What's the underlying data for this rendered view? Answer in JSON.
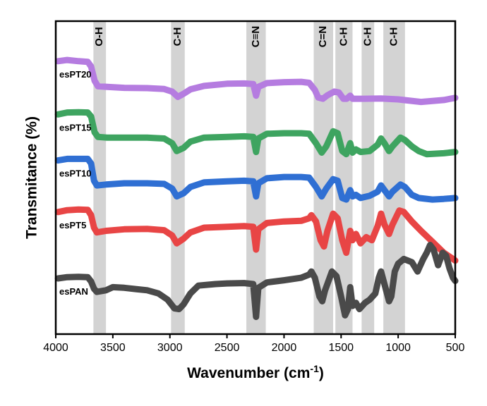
{
  "chart_data": {
    "type": "line",
    "title": "",
    "xlabel": "Wavenumber (cm",
    "xlabel_sup": "-1",
    "xlabel_close": ")",
    "ylabel": "Transmitance (%)",
    "x_reversed": true,
    "xlim": [
      4000,
      500
    ],
    "ylim": [
      0,
      1
    ],
    "x_ticks": [
      4000,
      3500,
      3000,
      2500,
      2000,
      1500,
      1000,
      500
    ],
    "x_tick_labels": [
      "4000",
      "3500",
      "3000",
      "2500",
      "2000",
      "1500",
      "1000",
      "500"
    ],
    "grid": false,
    "legend": "inline-left",
    "bands": [
      {
        "label": "O-H",
        "from": 3670,
        "to": 3560
      },
      {
        "label": "C-H",
        "from": 2990,
        "to": 2870
      },
      {
        "label": "C≡N",
        "from": 2330,
        "to": 2160
      },
      {
        "label": "C=N",
        "from": 1740,
        "to": 1570
      },
      {
        "label": "C-H",
        "from": 1550,
        "to": 1400
      },
      {
        "label": "C-H",
        "from": 1320,
        "to": 1210
      },
      {
        "label": "C-H",
        "from": 1130,
        "to": 940
      }
    ],
    "series": [
      {
        "name": "esPT20",
        "color": "#b57ce0",
        "points": [
          [
            3980,
            0.872
          ],
          [
            3900,
            0.876
          ],
          [
            3800,
            0.872
          ],
          [
            3720,
            0.87
          ],
          [
            3690,
            0.855
          ],
          [
            3660,
            0.81
          ],
          [
            3630,
            0.792
          ],
          [
            3550,
            0.79
          ],
          [
            3400,
            0.787
          ],
          [
            3200,
            0.786
          ],
          [
            3050,
            0.783
          ],
          [
            2980,
            0.775
          ],
          [
            2930,
            0.758
          ],
          [
            2880,
            0.768
          ],
          [
            2820,
            0.782
          ],
          [
            2700,
            0.793
          ],
          [
            2500,
            0.8
          ],
          [
            2350,
            0.801
          ],
          [
            2270,
            0.799
          ],
          [
            2245,
            0.762
          ],
          [
            2225,
            0.79
          ],
          [
            2150,
            0.802
          ],
          [
            2000,
            0.805
          ],
          [
            1850,
            0.806
          ],
          [
            1780,
            0.803
          ],
          [
            1730,
            0.78
          ],
          [
            1700,
            0.756
          ],
          [
            1660,
            0.752
          ],
          [
            1620,
            0.763
          ],
          [
            1560,
            0.775
          ],
          [
            1520,
            0.772
          ],
          [
            1480,
            0.752
          ],
          [
            1450,
            0.752
          ],
          [
            1420,
            0.762
          ],
          [
            1400,
            0.752
          ],
          [
            1300,
            0.752
          ],
          [
            1150,
            0.753
          ],
          [
            1000,
            0.75
          ],
          [
            800,
            0.742
          ],
          [
            600,
            0.748
          ],
          [
            500,
            0.755
          ]
        ]
      },
      {
        "name": "esPT15",
        "color": "#3ea460",
        "points": [
          [
            3980,
            0.702
          ],
          [
            3900,
            0.708
          ],
          [
            3800,
            0.709
          ],
          [
            3720,
            0.708
          ],
          [
            3690,
            0.695
          ],
          [
            3660,
            0.645
          ],
          [
            3630,
            0.63
          ],
          [
            3550,
            0.628
          ],
          [
            3400,
            0.628
          ],
          [
            3200,
            0.628
          ],
          [
            3050,
            0.625
          ],
          [
            2980,
            0.61
          ],
          [
            2940,
            0.585
          ],
          [
            2880,
            0.595
          ],
          [
            2820,
            0.615
          ],
          [
            2700,
            0.628
          ],
          [
            2500,
            0.63
          ],
          [
            2350,
            0.632
          ],
          [
            2270,
            0.63
          ],
          [
            2245,
            0.582
          ],
          [
            2225,
            0.625
          ],
          [
            2150,
            0.64
          ],
          [
            2000,
            0.642
          ],
          [
            1850,
            0.642
          ],
          [
            1780,
            0.64
          ],
          [
            1720,
            0.61
          ],
          [
            1670,
            0.58
          ],
          [
            1630,
            0.6
          ],
          [
            1570,
            0.648
          ],
          [
            1530,
            0.642
          ],
          [
            1490,
            0.585
          ],
          [
            1455,
            0.575
          ],
          [
            1420,
            0.61
          ],
          [
            1400,
            0.58
          ],
          [
            1370,
            0.59
          ],
          [
            1330,
            0.582
          ],
          [
            1250,
            0.585
          ],
          [
            1180,
            0.605
          ],
          [
            1150,
            0.625
          ],
          [
            1120,
            0.61
          ],
          [
            1080,
            0.585
          ],
          [
            1050,
            0.6
          ],
          [
            980,
            0.628
          ],
          [
            940,
            0.62
          ],
          [
            880,
            0.6
          ],
          [
            820,
            0.585
          ],
          [
            750,
            0.575
          ],
          [
            600,
            0.578
          ],
          [
            500,
            0.582
          ]
        ]
      },
      {
        "name": "esPT10",
        "color": "#2f6fd3",
        "points": [
          [
            3980,
            0.555
          ],
          [
            3900,
            0.56
          ],
          [
            3800,
            0.56
          ],
          [
            3720,
            0.56
          ],
          [
            3690,
            0.545
          ],
          [
            3665,
            0.49
          ],
          [
            3640,
            0.475
          ],
          [
            3560,
            0.478
          ],
          [
            3400,
            0.482
          ],
          [
            3200,
            0.482
          ],
          [
            3050,
            0.48
          ],
          [
            2980,
            0.465
          ],
          [
            2940,
            0.44
          ],
          [
            2880,
            0.45
          ],
          [
            2820,
            0.47
          ],
          [
            2700,
            0.485
          ],
          [
            2500,
            0.488
          ],
          [
            2350,
            0.49
          ],
          [
            2270,
            0.488
          ],
          [
            2245,
            0.44
          ],
          [
            2225,
            0.482
          ],
          [
            2150,
            0.498
          ],
          [
            2000,
            0.502
          ],
          [
            1850,
            0.502
          ],
          [
            1780,
            0.5
          ],
          [
            1720,
            0.47
          ],
          [
            1670,
            0.44
          ],
          [
            1630,
            0.465
          ],
          [
            1570,
            0.495
          ],
          [
            1530,
            0.49
          ],
          [
            1490,
            0.435
          ],
          [
            1455,
            0.43
          ],
          [
            1420,
            0.46
          ],
          [
            1400,
            0.44
          ],
          [
            1370,
            0.445
          ],
          [
            1330,
            0.435
          ],
          [
            1250,
            0.442
          ],
          [
            1180,
            0.455
          ],
          [
            1150,
            0.475
          ],
          [
            1120,
            0.46
          ],
          [
            1080,
            0.44
          ],
          [
            1050,
            0.455
          ],
          [
            980,
            0.478
          ],
          [
            940,
            0.47
          ],
          [
            880,
            0.445
          ],
          [
            820,
            0.435
          ],
          [
            700,
            0.43
          ],
          [
            600,
            0.432
          ],
          [
            500,
            0.435
          ]
        ]
      },
      {
        "name": "esPT5",
        "color": "#e84545",
        "points": [
          [
            3980,
            0.39
          ],
          [
            3900,
            0.396
          ],
          [
            3800,
            0.398
          ],
          [
            3720,
            0.397
          ],
          [
            3690,
            0.38
          ],
          [
            3665,
            0.34
          ],
          [
            3640,
            0.325
          ],
          [
            3560,
            0.33
          ],
          [
            3400,
            0.335
          ],
          [
            3200,
            0.336
          ],
          [
            3050,
            0.332
          ],
          [
            2980,
            0.315
          ],
          [
            2940,
            0.29
          ],
          [
            2880,
            0.305
          ],
          [
            2820,
            0.325
          ],
          [
            2700,
            0.34
          ],
          [
            2500,
            0.343
          ],
          [
            2350,
            0.345
          ],
          [
            2270,
            0.343
          ],
          [
            2245,
            0.27
          ],
          [
            2225,
            0.335
          ],
          [
            2150,
            0.355
          ],
          [
            2000,
            0.36
          ],
          [
            1850,
            0.362
          ],
          [
            1780,
            0.37
          ],
          [
            1760,
            0.38
          ],
          [
            1720,
            0.36
          ],
          [
            1680,
            0.3
          ],
          [
            1650,
            0.28
          ],
          [
            1620,
            0.33
          ],
          [
            1570,
            0.385
          ],
          [
            1530,
            0.37
          ],
          [
            1490,
            0.3
          ],
          [
            1455,
            0.26
          ],
          [
            1420,
            0.33
          ],
          [
            1400,
            0.3
          ],
          [
            1370,
            0.32
          ],
          [
            1330,
            0.29
          ],
          [
            1280,
            0.31
          ],
          [
            1230,
            0.3
          ],
          [
            1180,
            0.345
          ],
          [
            1150,
            0.385
          ],
          [
            1120,
            0.35
          ],
          [
            1080,
            0.32
          ],
          [
            1050,
            0.35
          ],
          [
            990,
            0.395
          ],
          [
            950,
            0.39
          ],
          [
            880,
            0.36
          ],
          [
            800,
            0.33
          ],
          [
            700,
            0.295
          ],
          [
            600,
            0.26
          ],
          [
            520,
            0.24
          ],
          [
            500,
            0.235
          ]
        ]
      },
      {
        "name": "esPAN",
        "color": "#4a4a4a",
        "points": [
          [
            3980,
            0.178
          ],
          [
            3900,
            0.182
          ],
          [
            3800,
            0.183
          ],
          [
            3720,
            0.182
          ],
          [
            3690,
            0.168
          ],
          [
            3665,
            0.145
          ],
          [
            3640,
            0.135
          ],
          [
            3560,
            0.14
          ],
          [
            3500,
            0.15
          ],
          [
            3400,
            0.148
          ],
          [
            3300,
            0.144
          ],
          [
            3200,
            0.14
          ],
          [
            3100,
            0.13
          ],
          [
            3020,
            0.11
          ],
          [
            2960,
            0.082
          ],
          [
            2920,
            0.08
          ],
          [
            2880,
            0.095
          ],
          [
            2820,
            0.13
          ],
          [
            2750,
            0.155
          ],
          [
            2600,
            0.16
          ],
          [
            2500,
            0.162
          ],
          [
            2350,
            0.163
          ],
          [
            2270,
            0.16
          ],
          [
            2245,
            0.055
          ],
          [
            2225,
            0.148
          ],
          [
            2150,
            0.165
          ],
          [
            2000,
            0.172
          ],
          [
            1850,
            0.18
          ],
          [
            1780,
            0.19
          ],
          [
            1760,
            0.2
          ],
          [
            1730,
            0.18
          ],
          [
            1690,
            0.12
          ],
          [
            1665,
            0.105
          ],
          [
            1640,
            0.14
          ],
          [
            1580,
            0.2
          ],
          [
            1540,
            0.185
          ],
          [
            1500,
            0.12
          ],
          [
            1465,
            0.06
          ],
          [
            1440,
            0.08
          ],
          [
            1420,
            0.15
          ],
          [
            1400,
            0.09
          ],
          [
            1370,
            0.1
          ],
          [
            1340,
            0.08
          ],
          [
            1290,
            0.1
          ],
          [
            1250,
            0.11
          ],
          [
            1200,
            0.13
          ],
          [
            1170,
            0.18
          ],
          [
            1150,
            0.2
          ],
          [
            1120,
            0.16
          ],
          [
            1080,
            0.105
          ],
          [
            1060,
            0.12
          ],
          [
            1030,
            0.2
          ],
          [
            1000,
            0.225
          ],
          [
            950,
            0.24
          ],
          [
            880,
            0.23
          ],
          [
            830,
            0.2
          ],
          [
            780,
            0.24
          ],
          [
            750,
            0.26
          ],
          [
            720,
            0.285
          ],
          [
            690,
            0.27
          ],
          [
            650,
            0.22
          ],
          [
            610,
            0.26
          ],
          [
            580,
            0.25
          ],
          [
            550,
            0.21
          ],
          [
            520,
            0.18
          ],
          [
            500,
            0.17
          ]
        ]
      }
    ]
  }
}
